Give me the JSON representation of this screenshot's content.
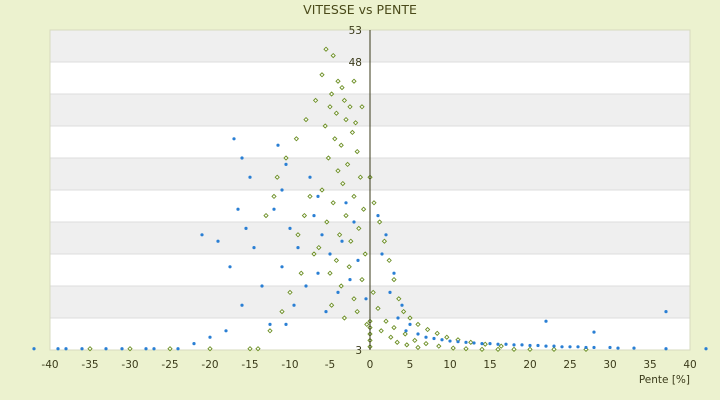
{
  "chart_data": {
    "type": "scatter",
    "title": "VITESSE vs PENTE",
    "xlabel": "Pente [%]",
    "ylabel": "",
    "xlim": [
      -40,
      40
    ],
    "ylim": [
      3,
      53
    ],
    "x_ticks": [
      -40,
      -35,
      -30,
      -25,
      -20,
      -15,
      -10,
      -5,
      0,
      5,
      10,
      15,
      20,
      25,
      30,
      35,
      40
    ],
    "y_ticks": [
      3,
      8,
      13,
      18,
      23,
      28,
      33,
      38,
      43,
      48,
      53
    ],
    "x_tick_labels": [
      "-40",
      "-35",
      "-30",
      "-25",
      "-20",
      "-15",
      "-10",
      "-5",
      "0",
      "5",
      "10",
      "15",
      "20",
      "25",
      "30",
      "35",
      "40"
    ],
    "y_tick_labels": [
      "3",
      "",
      "",
      "",
      "",
      "",
      "",
      "",
      "",
      "48",
      "53"
    ],
    "grid": "horizontal alternating bands",
    "series": [
      {
        "color": "#6b8e23",
        "marker": "diamond",
        "points": [
          [
            -5.5,
            50
          ],
          [
            -4.6,
            49
          ],
          [
            -6,
            46
          ],
          [
            -4,
            45
          ],
          [
            -3.5,
            44
          ],
          [
            -4.8,
            43
          ],
          [
            -3.2,
            42
          ],
          [
            -5,
            41
          ],
          [
            -2.5,
            41
          ],
          [
            -4.2,
            40
          ],
          [
            -3,
            39
          ],
          [
            -1.8,
            38.5
          ],
          [
            -5.6,
            38
          ],
          [
            -2.2,
            37
          ],
          [
            -4.4,
            36
          ],
          [
            -3.6,
            35
          ],
          [
            -1.6,
            34
          ],
          [
            -5.2,
            33
          ],
          [
            -2.8,
            32
          ],
          [
            -4,
            31
          ],
          [
            -1.2,
            30
          ],
          [
            -3.4,
            29
          ],
          [
            -6,
            28
          ],
          [
            -2,
            27
          ],
          [
            -4.6,
            26
          ],
          [
            -0.8,
            25
          ],
          [
            -3,
            24
          ],
          [
            -5.4,
            23
          ],
          [
            -1.4,
            22
          ],
          [
            -3.8,
            21
          ],
          [
            -2.4,
            20
          ],
          [
            -6.4,
            19
          ],
          [
            -0.6,
            18
          ],
          [
            -4.2,
            17
          ],
          [
            -2.6,
            16
          ],
          [
            -5,
            15
          ],
          [
            -1,
            14
          ],
          [
            -3.6,
            13
          ],
          [
            0.4,
            12
          ],
          [
            -2,
            11
          ],
          [
            -4.8,
            10
          ],
          [
            1,
            9.5
          ],
          [
            -1.6,
            9
          ],
          [
            -3.2,
            8
          ],
          [
            2,
            7.5
          ],
          [
            -0.4,
            7
          ],
          [
            3,
            6.5
          ],
          [
            1.4,
            6
          ],
          [
            4.4,
            5.5
          ],
          [
            2.6,
            5
          ],
          [
            5.6,
            4.5
          ],
          [
            3.4,
            4.2
          ],
          [
            7,
            4
          ],
          [
            4.6,
            3.8
          ],
          [
            8.6,
            3.6
          ],
          [
            6,
            3.4
          ],
          [
            10.4,
            3.3
          ],
          [
            12,
            3.2
          ],
          [
            14,
            3.1
          ],
          [
            16,
            3.1
          ],
          [
            18,
            3.1
          ],
          [
            20,
            3.1
          ],
          [
            23,
            3.1
          ],
          [
            27,
            3.1
          ],
          [
            -7.5,
            27
          ],
          [
            -8.2,
            24
          ],
          [
            -9,
            21
          ],
          [
            -7,
            18
          ],
          [
            -8.6,
            15
          ],
          [
            -10,
            12
          ],
          [
            -11,
            9
          ],
          [
            -12.5,
            6
          ],
          [
            -14,
            3.2
          ],
          [
            -10.5,
            33
          ],
          [
            -9.2,
            36
          ],
          [
            -8,
            39
          ],
          [
            -6.8,
            42
          ],
          [
            -11.6,
            30
          ],
          [
            -12,
            27
          ],
          [
            -13,
            24
          ],
          [
            -2,
            45
          ],
          [
            -1,
            41
          ],
          [
            0,
            30
          ],
          [
            0.5,
            26
          ],
          [
            1.2,
            23
          ],
          [
            1.8,
            20
          ],
          [
            2.4,
            17
          ],
          [
            3,
            14
          ],
          [
            3.6,
            11
          ],
          [
            4.2,
            9
          ],
          [
            5,
            8
          ],
          [
            6,
            7
          ],
          [
            7.2,
            6.2
          ],
          [
            8.4,
            5.6
          ],
          [
            9.6,
            5
          ],
          [
            11,
            4.6
          ],
          [
            12.6,
            4.2
          ],
          [
            14.4,
            3.9
          ],
          [
            16.4,
            3.6
          ],
          [
            -35,
            3.2
          ],
          [
            -30,
            3.2
          ],
          [
            -25,
            3.2
          ],
          [
            -20,
            3.2
          ],
          [
            -15,
            3.2
          ],
          [
            0,
            3.5
          ],
          [
            0,
            4.5
          ],
          [
            0,
            5.5
          ],
          [
            0,
            6.5
          ],
          [
            0,
            7.5
          ]
        ]
      },
      {
        "color": "#2a7fd4",
        "marker": "dot",
        "points": [
          [
            -17,
            36
          ],
          [
            -16,
            33
          ],
          [
            -15,
            30
          ],
          [
            -16.5,
            25
          ],
          [
            -15.5,
            22
          ],
          [
            -14.5,
            19
          ],
          [
            -17.5,
            16
          ],
          [
            -13.5,
            13
          ],
          [
            -16,
            10
          ],
          [
            -12.5,
            7
          ],
          [
            -11.5,
            35
          ],
          [
            -10.5,
            32
          ],
          [
            -11,
            28
          ],
          [
            -12,
            25
          ],
          [
            -10,
            22
          ],
          [
            -9,
            19
          ],
          [
            -11,
            16
          ],
          [
            -8,
            13
          ],
          [
            -9.5,
            10
          ],
          [
            -10.5,
            7
          ],
          [
            -7.5,
            30
          ],
          [
            -6.5,
            27
          ],
          [
            -7,
            24
          ],
          [
            -6,
            21
          ],
          [
            -5,
            18
          ],
          [
            -6.5,
            15
          ],
          [
            -4,
            12
          ],
          [
            -5.5,
            9
          ],
          [
            -3,
            26
          ],
          [
            -2,
            23
          ],
          [
            -3.5,
            20
          ],
          [
            -1.5,
            17
          ],
          [
            -2.5,
            14
          ],
          [
            -0.5,
            11
          ],
          [
            1,
            24
          ],
          [
            2,
            21
          ],
          [
            1.5,
            18
          ],
          [
            3,
            15
          ],
          [
            2.5,
            12
          ],
          [
            4,
            10
          ],
          [
            3.5,
            8
          ],
          [
            5,
            7
          ],
          [
            4.5,
            6
          ],
          [
            6,
            5.5
          ],
          [
            7,
            5
          ],
          [
            8,
            4.8
          ],
          [
            9,
            4.6
          ],
          [
            10,
            4.4
          ],
          [
            11,
            4.3
          ],
          [
            12,
            4.2
          ],
          [
            13,
            4.1
          ],
          [
            14,
            4
          ],
          [
            15,
            4
          ],
          [
            16,
            3.9
          ],
          [
            17,
            3.9
          ],
          [
            18,
            3.8
          ],
          [
            19,
            3.8
          ],
          [
            20,
            3.7
          ],
          [
            21,
            3.7
          ],
          [
            22,
            3.6
          ],
          [
            23,
            3.6
          ],
          [
            24,
            3.5
          ],
          [
            25,
            3.5
          ],
          [
            26,
            3.5
          ],
          [
            27,
            3.4
          ],
          [
            28,
            3.4
          ],
          [
            30,
            3.4
          ],
          [
            31,
            3.3
          ],
          [
            33,
            3.3
          ],
          [
            37,
            3.2
          ],
          [
            42,
            3.2
          ],
          [
            37,
            9
          ],
          [
            22,
            7.5
          ],
          [
            28,
            5.8
          ],
          [
            -19,
            20
          ],
          [
            -21,
            21
          ],
          [
            -22,
            4
          ],
          [
            -20,
            5
          ],
          [
            -18,
            6
          ],
          [
            -24,
            3.2
          ],
          [
            -28,
            3.2
          ],
          [
            -33,
            3.2
          ],
          [
            -38,
            3.2
          ],
          [
            -42,
            3.2
          ],
          [
            -27,
            3.2
          ],
          [
            -31,
            3.2
          ],
          [
            -36,
            3.2
          ],
          [
            -39,
            3.2
          ]
        ]
      }
    ]
  }
}
